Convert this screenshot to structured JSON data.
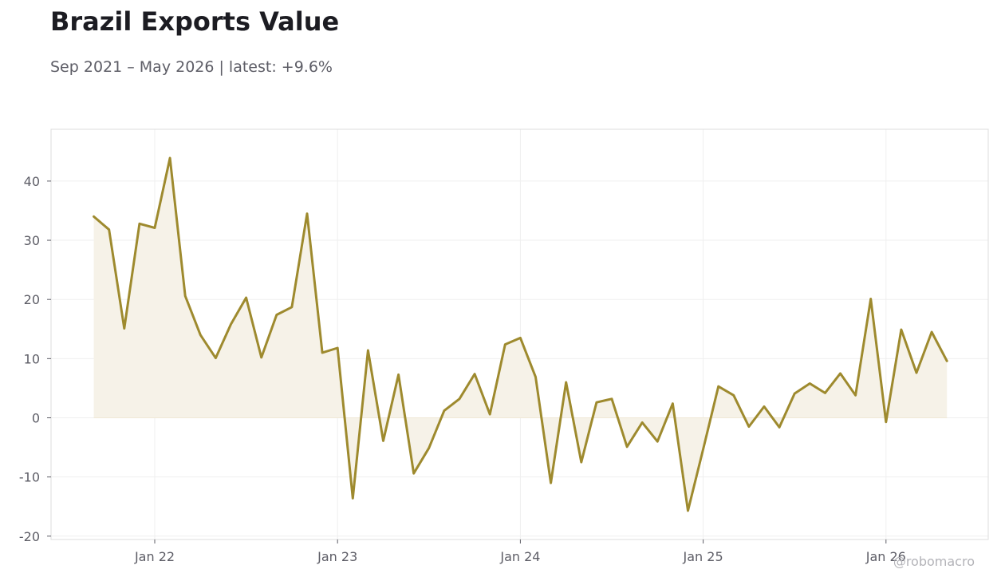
{
  "title": "Brazil Exports Value",
  "subtitle": "Sep 2021 – May 2026 | latest: +9.6%",
  "watermark": "@robomacro",
  "colors": {
    "line": "#9e8a2e",
    "fill": "#f6f2e8",
    "grid": "#efefef",
    "frame": "#dcdcdc",
    "text": "#5d5d66"
  },
  "chart_data": {
    "type": "area",
    "x_start": "2021-09",
    "x_end": "2026-05",
    "ylim": [
      -20,
      48
    ],
    "yticks": [
      -20,
      -10,
      0,
      10,
      20,
      30,
      40
    ],
    "xticks": [
      {
        "label": "Jan 22",
        "date": "2022-01"
      },
      {
        "label": "Jan 23",
        "date": "2023-01"
      },
      {
        "label": "Jan 24",
        "date": "2024-01"
      },
      {
        "label": "Jan 25",
        "date": "2025-01"
      },
      {
        "label": "Jan 26",
        "date": "2026-01"
      }
    ],
    "grid": true,
    "series": [
      {
        "x": [
          "2021-09",
          "2021-10",
          "2021-11",
          "2021-12",
          "2022-01",
          "2022-02",
          "2022-03",
          "2022-04",
          "2022-05",
          "2022-06",
          "2022-07",
          "2022-08",
          "2022-09",
          "2022-10",
          "2022-11",
          "2022-12",
          "2023-01",
          "2023-02",
          "2023-03",
          "2023-04",
          "2023-05",
          "2023-06",
          "2023-07",
          "2023-08",
          "2023-09",
          "2023-10",
          "2023-11",
          "2023-12",
          "2024-01",
          "2024-02",
          "2024-03",
          "2024-04",
          "2024-05",
          "2024-06",
          "2024-07",
          "2024-08",
          "2024-09",
          "2024-10",
          "2024-11",
          "2024-12",
          "2025-01",
          "2025-02",
          "2025-03",
          "2025-04",
          "2025-05",
          "2025-06",
          "2025-07",
          "2025-08",
          "2025-09",
          "2025-10",
          "2025-11",
          "2025-12",
          "2026-01",
          "2026-02",
          "2026-03",
          "2026-04",
          "2026-05"
        ],
        "values": [
          34.0,
          31.8,
          15.1,
          32.8,
          32.1,
          43.9,
          20.6,
          14.0,
          10.1,
          15.8,
          20.3,
          10.2,
          17.4,
          18.7,
          34.5,
          11.0,
          11.8,
          -13.6,
          11.4,
          -3.9,
          7.3,
          -9.4,
          -5.1,
          1.2,
          3.2,
          7.4,
          0.6,
          12.4,
          13.5,
          6.9,
          -11.0,
          6.0,
          -7.5,
          2.6,
          3.2,
          -4.9,
          -0.8,
          -4.0,
          2.4,
          -15.7,
          -5.3,
          5.3,
          3.8,
          -1.5,
          1.9,
          -1.6,
          4.1,
          5.8,
          4.2,
          7.5,
          3.8,
          20.1,
          -0.7,
          14.9,
          7.6,
          14.5,
          9.6
        ]
      }
    ]
  }
}
